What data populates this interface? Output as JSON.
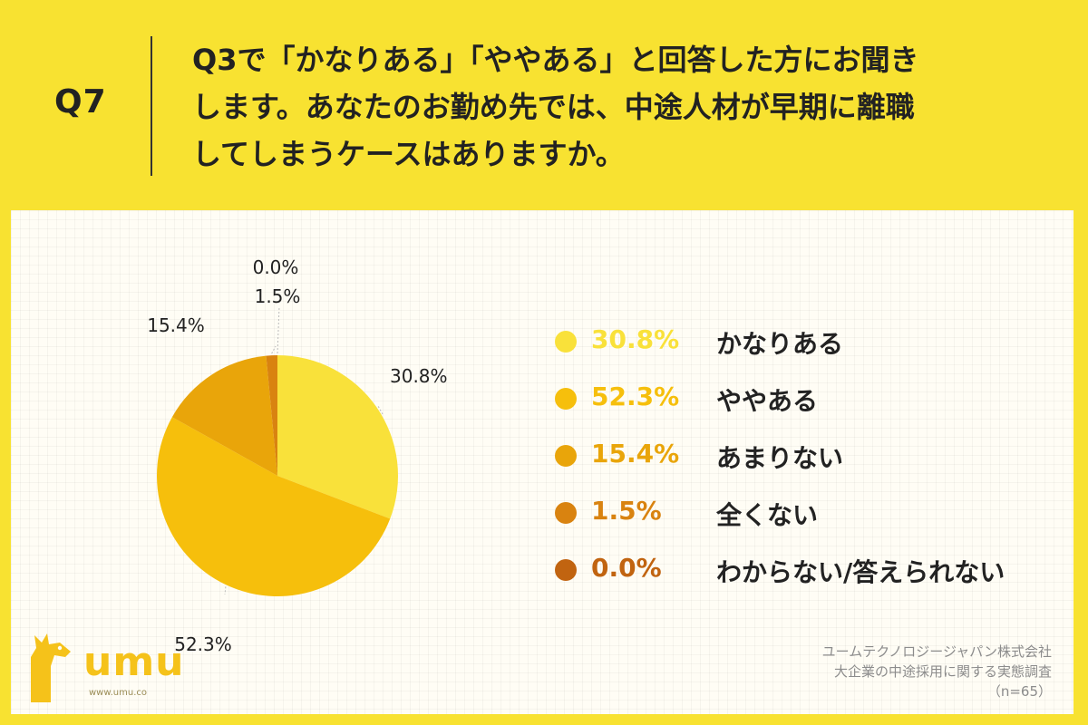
{
  "header": {
    "qnum": "Q7",
    "question_lines": [
      "Q3で「かなりある」「ややある」と回答した方にお聞き",
      "します。あなたのお勤め先では、中途人材が早期に離職",
      "してしまうケースはありますか。"
    ]
  },
  "chart_data": {
    "type": "pie",
    "slices": [
      {
        "label": "かなりある",
        "value": 30.8,
        "display": "30.8%",
        "color": "#f9e13a"
      },
      {
        "label": "ややある",
        "value": 52.3,
        "display": "52.3%",
        "color": "#f6bf0c"
      },
      {
        "label": "あまりない",
        "value": 15.4,
        "display": "15.4%",
        "color": "#e9a50a"
      },
      {
        "label": "全くない",
        "value": 1.5,
        "display": "1.5%",
        "color": "#d98310"
      },
      {
        "label": "わからない/答えられない",
        "value": 0.0,
        "display": "0.0%",
        "color": "#c16410"
      }
    ],
    "legend_position": "right"
  },
  "logo": {
    "text": "umu",
    "url": "www.umu.co"
  },
  "credit": {
    "company": "ユームテクノロジージャパン株式会社",
    "survey": "大企業の中途採用に関する実態調査",
    "n": "（n=65）"
  }
}
